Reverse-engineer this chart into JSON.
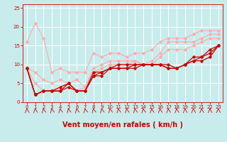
{
  "xlabel": "Vent moyen/en rafales ( km/h )",
  "bg_color": "#c8ecec",
  "grid_color": "#ffffff",
  "xlim": [
    -0.5,
    23.5
  ],
  "ylim": [
    0,
    26
  ],
  "xticks": [
    0,
    1,
    2,
    3,
    4,
    5,
    6,
    7,
    8,
    9,
    10,
    11,
    12,
    13,
    14,
    15,
    16,
    17,
    18,
    19,
    20,
    21,
    22,
    23
  ],
  "yticks": [
    0,
    5,
    10,
    15,
    20,
    25
  ],
  "lines": [
    {
      "x": [
        0,
        1,
        2,
        3,
        4,
        5,
        6,
        7,
        8,
        9,
        10,
        11,
        12,
        13,
        14,
        15,
        16,
        17,
        18,
        19,
        20,
        21,
        22,
        23
      ],
      "y": [
        16,
        21,
        17,
        8,
        9,
        8,
        8,
        8,
        13,
        12,
        13,
        13,
        12,
        13,
        13,
        14,
        16,
        17,
        17,
        17,
        18,
        19,
        19,
        19
      ],
      "color": "#ffaaaa",
      "lw": 0.8,
      "marker": "D",
      "ms": 1.8,
      "zorder": 2
    },
    {
      "x": [
        0,
        1,
        2,
        3,
        4,
        5,
        6,
        7,
        8,
        9,
        10,
        11,
        12,
        13,
        14,
        15,
        16,
        17,
        18,
        19,
        20,
        21,
        22,
        23
      ],
      "y": [
        9,
        8,
        6,
        5,
        6,
        5,
        6,
        4,
        9,
        10,
        11,
        11,
        11,
        11,
        10,
        11,
        13,
        16,
        16,
        16,
        16,
        17,
        18,
        18
      ],
      "color": "#ffaaaa",
      "lw": 0.8,
      "marker": "D",
      "ms": 1.8,
      "zorder": 2
    },
    {
      "x": [
        0,
        1,
        2,
        3,
        4,
        5,
        6,
        7,
        8,
        9,
        10,
        11,
        12,
        13,
        14,
        15,
        16,
        17,
        18,
        19,
        20,
        21,
        22,
        23
      ],
      "y": [
        9,
        5,
        3,
        3,
        4,
        5,
        3,
        4,
        8,
        9,
        10,
        10,
        10,
        11,
        10,
        10,
        12,
        14,
        14,
        14,
        15,
        16,
        17,
        17
      ],
      "color": "#ffaaaa",
      "lw": 0.8,
      "marker": "D",
      "ms": 1.8,
      "zorder": 2
    },
    {
      "x": [
        0,
        1,
        2,
        3,
        4,
        5,
        6,
        7,
        8,
        9,
        10,
        11,
        12,
        13,
        14,
        15,
        16,
        17,
        18,
        19,
        20,
        21,
        22,
        23
      ],
      "y": [
        9,
        2,
        3,
        3,
        4,
        5,
        3,
        3,
        8,
        8,
        9,
        10,
        10,
        10,
        10,
        10,
        10,
        9,
        9,
        10,
        12,
        12,
        14,
        15
      ],
      "color": "#cc0000",
      "lw": 0.9,
      "marker": "D",
      "ms": 1.8,
      "zorder": 3
    },
    {
      "x": [
        0,
        1,
        2,
        3,
        4,
        5,
        6,
        7,
        8,
        9,
        10,
        11,
        12,
        13,
        14,
        15,
        16,
        17,
        18,
        19,
        20,
        21,
        22,
        23
      ],
      "y": [
        9,
        2,
        3,
        3,
        3,
        5,
        3,
        3,
        7,
        8,
        9,
        9,
        9,
        10,
        10,
        10,
        10,
        10,
        9,
        10,
        11,
        12,
        13,
        15
      ],
      "color": "#cc0000",
      "lw": 0.9,
      "marker": "D",
      "ms": 1.8,
      "zorder": 3
    },
    {
      "x": [
        0,
        1,
        2,
        3,
        4,
        5,
        6,
        7,
        8,
        9,
        10,
        11,
        12,
        13,
        14,
        15,
        16,
        17,
        18,
        19,
        20,
        21,
        22,
        23
      ],
      "y": [
        9,
        2,
        3,
        3,
        3,
        4,
        3,
        3,
        7,
        7,
        9,
        9,
        9,
        9,
        10,
        10,
        10,
        9,
        9,
        10,
        11,
        11,
        12,
        15
      ],
      "color": "#cc0000",
      "lw": 0.9,
      "marker": "D",
      "ms": 1.8,
      "zorder": 3
    }
  ],
  "xlabel_color": "#cc0000",
  "xlabel_fontsize": 7,
  "tick_color": "#cc0000",
  "tick_fontsize": 5,
  "arrow_angles": [
    200,
    210,
    220,
    225,
    230,
    235,
    235,
    240,
    300,
    310,
    315,
    320,
    325,
    325,
    330,
    330,
    335,
    340,
    340,
    345,
    345,
    350,
    355,
    355
  ]
}
